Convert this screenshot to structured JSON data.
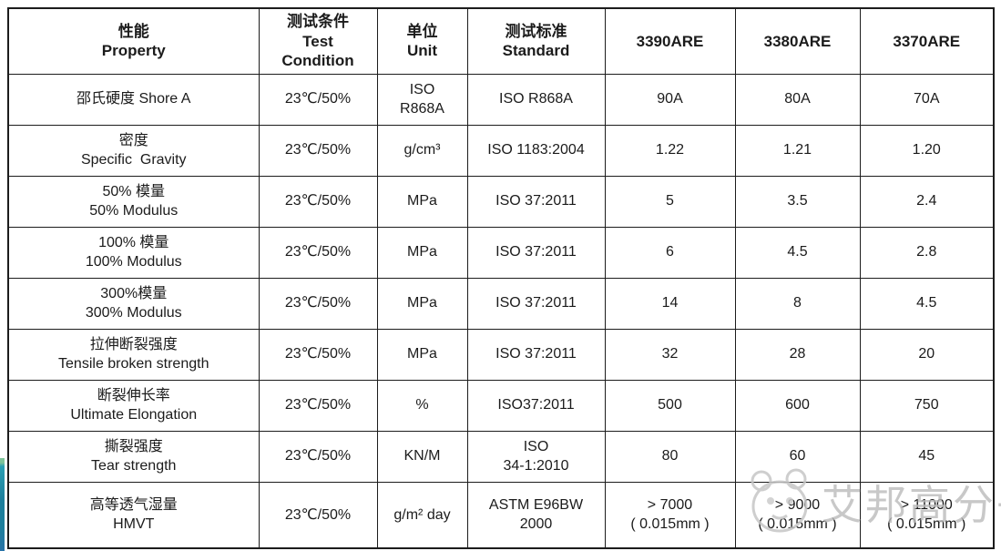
{
  "page": {
    "background_color": "#ffffff",
    "text_color": "#1b1b1b",
    "border_color": "#1c1c1c"
  },
  "accent_bar": {
    "colors_top_to_bottom": [
      "#7fc49a",
      "#2aa0b4",
      "#1e7f9c",
      "#2a74a8"
    ]
  },
  "watermark": {
    "text": "艾邦高分子",
    "color": "#bdbdbd",
    "logo": "panda-face"
  },
  "table": {
    "headers": [
      {
        "lines": [
          "性能",
          "Property"
        ]
      },
      {
        "lines": [
          "测试条件",
          "Test",
          "Condition"
        ]
      },
      {
        "lines": [
          "单位",
          "Unit"
        ]
      },
      {
        "lines": [
          "测试标准",
          "Standard"
        ]
      },
      {
        "lines": [
          "3390ARE"
        ]
      },
      {
        "lines": [
          "3380ARE"
        ]
      },
      {
        "lines": [
          "3370ARE"
        ]
      }
    ],
    "rows": [
      {
        "cells": [
          [
            "邵氏硬度 Shore A"
          ],
          [
            "23℃/50%"
          ],
          [
            "ISO",
            "R868A"
          ],
          [
            "ISO R868A"
          ],
          [
            "90A"
          ],
          [
            "80A"
          ],
          [
            "70A"
          ]
        ]
      },
      {
        "cells": [
          [
            "密度",
            "Specific  Gravity"
          ],
          [
            "23℃/50%"
          ],
          [
            "g/cm³"
          ],
          [
            "ISO 1183:2004"
          ],
          [
            "1.22"
          ],
          [
            "1.21"
          ],
          [
            "1.20"
          ]
        ]
      },
      {
        "cells": [
          [
            "50% 模量",
            "50% Modulus"
          ],
          [
            "23℃/50%"
          ],
          [
            "MPa"
          ],
          [
            "ISO 37:2011"
          ],
          [
            "5"
          ],
          [
            "3.5"
          ],
          [
            "2.4"
          ]
        ]
      },
      {
        "cells": [
          [
            "100% 模量",
            "100% Modulus"
          ],
          [
            "23℃/50%"
          ],
          [
            "MPa"
          ],
          [
            "ISO 37:2011"
          ],
          [
            "6"
          ],
          [
            "4.5"
          ],
          [
            "2.8"
          ]
        ]
      },
      {
        "cells": [
          [
            "300%模量",
            "300% Modulus"
          ],
          [
            "23℃/50%"
          ],
          [
            "MPa"
          ],
          [
            "ISO 37:2011"
          ],
          [
            "14"
          ],
          [
            "8"
          ],
          [
            "4.5"
          ]
        ]
      },
      {
        "cells": [
          [
            "拉伸断裂强度",
            "Tensile broken strength"
          ],
          [
            "23℃/50%"
          ],
          [
            "MPa"
          ],
          [
            "ISO 37:2011"
          ],
          [
            "32"
          ],
          [
            "28"
          ],
          [
            "20"
          ]
        ]
      },
      {
        "cells": [
          [
            "断裂伸长率",
            "Ultimate Elongation"
          ],
          [
            "23℃/50%"
          ],
          [
            "%"
          ],
          [
            "ISO37:2011"
          ],
          [
            "500"
          ],
          [
            "600"
          ],
          [
            "750"
          ]
        ]
      },
      {
        "cells": [
          [
            "撕裂强度",
            "Tear strength"
          ],
          [
            "23℃/50%"
          ],
          [
            "KN/M"
          ],
          [
            "ISO",
            "34-1:2010"
          ],
          [
            "80"
          ],
          [
            "60"
          ],
          [
            "45"
          ]
        ]
      },
      {
        "cells": [
          [
            "高等透气湿量",
            "HMVT"
          ],
          [
            "23℃/50%"
          ],
          [
            "g/m² day"
          ],
          [
            "ASTM E96BW",
            "2000"
          ],
          [
            "> 7000",
            "( 0.015mm )"
          ],
          [
            "> 9000",
            "( 0.015mm )"
          ],
          [
            "> 11000",
            "( 0.015mm )"
          ]
        ]
      }
    ]
  }
}
